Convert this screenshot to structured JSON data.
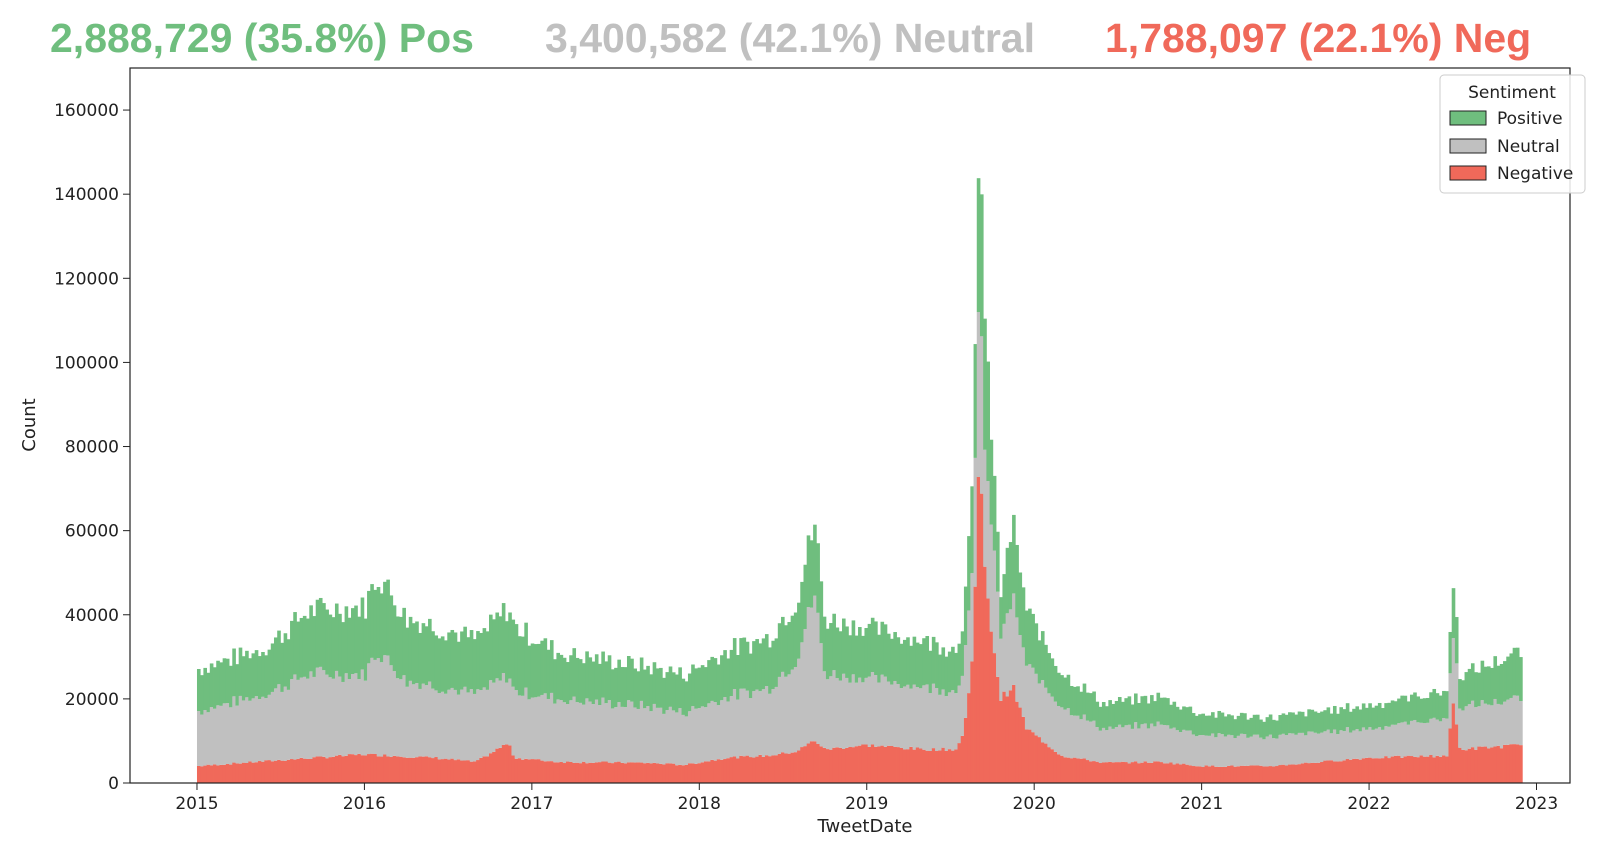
{
  "headline": {
    "positive": "2,888,729 (35.8%) Pos",
    "neutral": "3,400,582 (42.1%) Neutral",
    "negative": "1,788,097 (22.1%) Neg"
  },
  "colors": {
    "positive": "#6fbe7e",
    "neutral": "#c0c0c0",
    "negative": "#f0695a"
  },
  "chart_data": {
    "type": "bar",
    "stacked": true,
    "xlabel": "TweetDate",
    "ylabel": "Count",
    "ylim": [
      0,
      170000
    ],
    "xlim": [
      2014.6,
      2023.2
    ],
    "x_ticks": [
      "2015",
      "2016",
      "2017",
      "2018",
      "2019",
      "2020",
      "2021",
      "2022",
      "2023"
    ],
    "y_ticks": [
      "0",
      "20000",
      "40000",
      "60000",
      "80000",
      "100000",
      "120000",
      "140000",
      "160000"
    ],
    "legend": {
      "title": "Sentiment",
      "position": "top-right",
      "entries": [
        "Positive",
        "Neutral",
        "Negative"
      ]
    },
    "bin": "weekly",
    "x_start": "2015-01-01",
    "x_end": "2022-11-27",
    "series": [
      {
        "name": "Negative",
        "anchors": [
          [
            "2015-01-01",
            4000
          ],
          [
            "2015-06-01",
            5200
          ],
          [
            "2016-01-01",
            6800
          ],
          [
            "2016-06-01",
            6000
          ],
          [
            "2016-09-01",
            5000
          ],
          [
            "2016-11-10",
            9500
          ],
          [
            "2016-11-24",
            6000
          ],
          [
            "2017-03-01",
            5000
          ],
          [
            "2017-09-01",
            4800
          ],
          [
            "2017-12-01",
            4300
          ],
          [
            "2018-03-01",
            6000
          ],
          [
            "2018-06-01",
            6500
          ],
          [
            "2018-08-01",
            7500
          ],
          [
            "2018-09-10",
            10200
          ],
          [
            "2018-10-01",
            8000
          ],
          [
            "2019-01-01",
            9000
          ],
          [
            "2019-05-01",
            8000
          ],
          [
            "2019-07-15",
            8000
          ],
          [
            "2019-08-01",
            12000
          ],
          [
            "2019-08-20",
            30000
          ],
          [
            "2019-09-03",
            80000
          ],
          [
            "2019-09-17",
            46000
          ],
          [
            "2019-10-01",
            36000
          ],
          [
            "2019-10-20",
            20000
          ],
          [
            "2019-11-15",
            23000
          ],
          [
            "2019-12-15",
            13000
          ],
          [
            "2020-03-01",
            6500
          ],
          [
            "2020-06-01",
            4800
          ],
          [
            "2020-10-01",
            5000
          ],
          [
            "2021-01-01",
            4000
          ],
          [
            "2021-06-01",
            4000
          ],
          [
            "2022-01-01",
            6000
          ],
          [
            "2022-06-20",
            6500
          ],
          [
            "2022-07-04",
            19000
          ],
          [
            "2022-07-18",
            8000
          ],
          [
            "2022-11-27",
            9000
          ]
        ]
      },
      {
        "name": "Neutral",
        "anchors": [
          [
            "2015-01-01",
            13000
          ],
          [
            "2015-06-01",
            16000
          ],
          [
            "2015-09-01",
            20000
          ],
          [
            "2016-01-01",
            19000
          ],
          [
            "2016-02-01",
            25000
          ],
          [
            "2016-04-01",
            18000
          ],
          [
            "2016-09-01",
            16000
          ],
          [
            "2016-11-10",
            16000
          ],
          [
            "2017-03-01",
            15000
          ],
          [
            "2017-09-01",
            13500
          ],
          [
            "2017-12-01",
            12500
          ],
          [
            "2018-03-01",
            14500
          ],
          [
            "2018-06-01",
            16000
          ],
          [
            "2018-08-01",
            22000
          ],
          [
            "2018-09-10",
            35000
          ],
          [
            "2018-10-01",
            18000
          ],
          [
            "2019-01-01",
            16000
          ],
          [
            "2019-05-01",
            15000
          ],
          [
            "2019-07-15",
            14000
          ],
          [
            "2019-08-01",
            16000
          ],
          [
            "2019-08-20",
            20000
          ],
          [
            "2019-09-03",
            45000
          ],
          [
            "2019-09-17",
            25000
          ],
          [
            "2019-10-01",
            27000
          ],
          [
            "2019-10-20",
            15000
          ],
          [
            "2019-11-15",
            21000
          ],
          [
            "2019-12-15",
            15000
          ],
          [
            "2020-03-01",
            12000
          ],
          [
            "2020-06-01",
            8000
          ],
          [
            "2020-10-01",
            9000
          ],
          [
            "2021-01-01",
            7500
          ],
          [
            "2021-06-01",
            7000
          ],
          [
            "2022-01-01",
            7000
          ],
          [
            "2022-06-20",
            9000
          ],
          [
            "2022-07-04",
            17000
          ],
          [
            "2022-07-18",
            10000
          ],
          [
            "2022-11-27",
            11000
          ]
        ]
      },
      {
        "name": "Positive",
        "anchors": [
          [
            "2015-01-01",
            10000
          ],
          [
            "2015-06-01",
            11000
          ],
          [
            "2015-09-01",
            15000
          ],
          [
            "2016-01-01",
            16000
          ],
          [
            "2016-02-01",
            18000
          ],
          [
            "2016-04-01",
            15000
          ],
          [
            "2016-09-01",
            13000
          ],
          [
            "2016-11-10",
            16000
          ],
          [
            "2017-03-01",
            11000
          ],
          [
            "2017-09-01",
            9500
          ],
          [
            "2017-12-01",
            9000
          ],
          [
            "2018-03-01",
            11000
          ],
          [
            "2018-06-01",
            12000
          ],
          [
            "2018-08-01",
            14000
          ],
          [
            "2018-09-10",
            17000
          ],
          [
            "2018-10-01",
            13000
          ],
          [
            "2019-01-01",
            12000
          ],
          [
            "2019-05-01",
            11000
          ],
          [
            "2019-07-15",
            10000
          ],
          [
            "2019-08-01",
            12000
          ],
          [
            "2019-08-20",
            20000
          ],
          [
            "2019-09-03",
            36000
          ],
          [
            "2019-09-17",
            30000
          ],
          [
            "2019-10-01",
            20000
          ],
          [
            "2019-10-20",
            10000
          ],
          [
            "2019-11-15",
            18000
          ],
          [
            "2019-12-15",
            13000
          ],
          [
            "2020-03-01",
            8000
          ],
          [
            "2020-06-01",
            6000
          ],
          [
            "2020-10-01",
            6500
          ],
          [
            "2021-01-01",
            5000
          ],
          [
            "2021-06-01",
            4500
          ],
          [
            "2022-01-01",
            5500
          ],
          [
            "2022-06-20",
            6500
          ],
          [
            "2022-07-04",
            13000
          ],
          [
            "2022-07-18",
            7500
          ],
          [
            "2022-11-27",
            11000
          ]
        ]
      }
    ]
  }
}
